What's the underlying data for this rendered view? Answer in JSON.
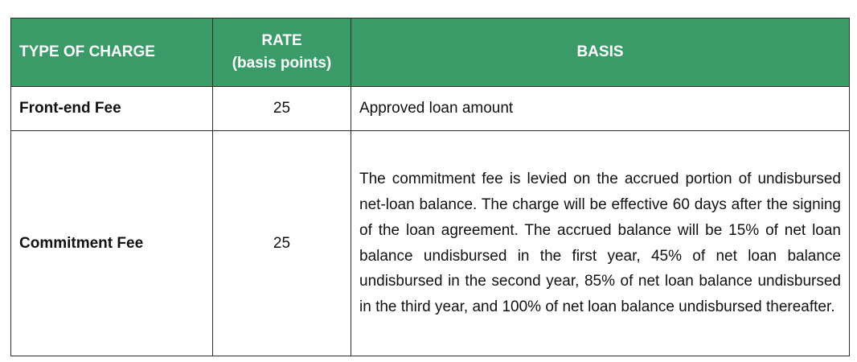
{
  "table": {
    "headers": {
      "type": "TYPE OF CHARGE",
      "rate_line1": "RATE",
      "rate_line2": "(basis points)",
      "basis": "BASIS"
    },
    "rows": [
      {
        "type": "Front-end Fee",
        "rate": "25",
        "basis": "Approved loan amount"
      },
      {
        "type": "Commitment Fee",
        "rate": "25",
        "basis": "The commitment fee is levied on the accrued portion of undisbursed net-loan balance. The charge will be effective 60 days after the signing of the loan agreement. The accrued balance will be 15% of net loan balance undisbursed in the first year, 45% of net loan balance undisbursed in the second year, 85% of net loan balance undisbursed in the third year, and 100% of net loan balance undisbursed thereafter."
      }
    ]
  },
  "colors": {
    "header_bg": "#3a9b69",
    "header_text": "#ffffff",
    "border": "#2b2b2b"
  }
}
